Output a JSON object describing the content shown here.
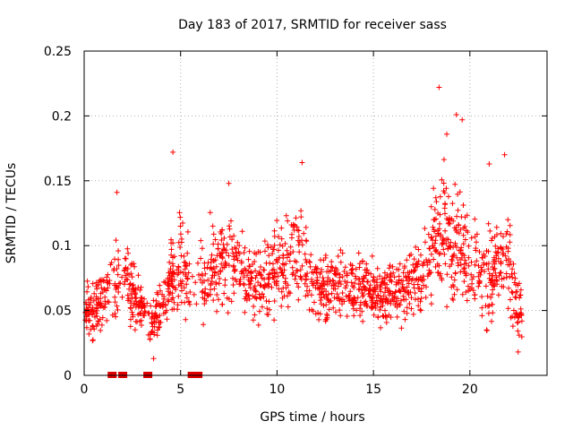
{
  "chart_data": {
    "type": "scatter",
    "title": "Day 183 of 2017, SRMTID for receiver sass",
    "xlabel": "GPS time / hours",
    "ylabel": "SRMTID / TECUs",
    "xlim": [
      0,
      24
    ],
    "ylim": [
      0,
      0.25
    ],
    "xticks": [
      0,
      5,
      10,
      15,
      20
    ],
    "xtick_labels": [
      "0",
      "5",
      "10",
      "15",
      "20"
    ],
    "yticks": [
      0,
      0.05,
      0.1,
      0.15,
      0.2,
      0.25
    ],
    "ytick_labels": [
      "0",
      "0.05",
      "0.1",
      "0.15",
      "0.2",
      "0.25"
    ],
    "grid": true,
    "marker": "plus",
    "point_color": "#ff0000",
    "gap_marker_color": "#dd0000",
    "gap_markers_x": [
      1.45,
      2.0,
      3.3,
      5.6,
      5.9
    ],
    "envelope": {
      "description": "typical SRMTID level (center) and scatter half-width per hour, read from chart",
      "hours": [
        0,
        0.5,
        1,
        1.5,
        2,
        2.5,
        3,
        3.5,
        4,
        4.5,
        5,
        5.5,
        6,
        6.5,
        7,
        7.5,
        8,
        8.5,
        9,
        9.5,
        10,
        10.5,
        11,
        11.5,
        12,
        12.5,
        13,
        13.5,
        14,
        14.5,
        15,
        15.5,
        16,
        16.5,
        17,
        17.5,
        18,
        18.5,
        19,
        19.5,
        20,
        20.5,
        21,
        21.5,
        22,
        22.5
      ],
      "center": [
        0.055,
        0.05,
        0.06,
        0.07,
        0.08,
        0.065,
        0.05,
        0.04,
        0.05,
        0.075,
        0.09,
        0.07,
        0.075,
        0.08,
        0.085,
        0.09,
        0.08,
        0.075,
        0.07,
        0.075,
        0.08,
        0.085,
        0.1,
        0.085,
        0.07,
        0.065,
        0.07,
        0.065,
        0.065,
        0.068,
        0.065,
        0.062,
        0.065,
        0.068,
        0.07,
        0.075,
        0.1,
        0.11,
        0.105,
        0.1,
        0.085,
        0.08,
        0.075,
        0.09,
        0.085,
        0.05
      ],
      "spread": [
        0.02,
        0.02,
        0.025,
        0.03,
        0.03,
        0.03,
        0.02,
        0.015,
        0.02,
        0.03,
        0.04,
        0.03,
        0.03,
        0.035,
        0.035,
        0.035,
        0.03,
        0.03,
        0.03,
        0.03,
        0.035,
        0.035,
        0.04,
        0.035,
        0.025,
        0.025,
        0.025,
        0.025,
        0.025,
        0.025,
        0.025,
        0.025,
        0.025,
        0.025,
        0.025,
        0.03,
        0.045,
        0.05,
        0.05,
        0.045,
        0.04,
        0.035,
        0.035,
        0.04,
        0.04,
        0.02
      ]
    },
    "peaks": [
      {
        "x": 1.7,
        "y": 0.141
      },
      {
        "x": 4.6,
        "y": 0.172
      },
      {
        "x": 7.5,
        "y": 0.148
      },
      {
        "x": 11.3,
        "y": 0.164
      },
      {
        "x": 18.4,
        "y": 0.222
      },
      {
        "x": 18.8,
        "y": 0.186
      },
      {
        "x": 19.3,
        "y": 0.201
      },
      {
        "x": 19.6,
        "y": 0.197
      },
      {
        "x": 21.0,
        "y": 0.163
      },
      {
        "x": 21.8,
        "y": 0.17
      },
      {
        "x": 3.6,
        "y": 0.013
      },
      {
        "x": 22.5,
        "y": 0.018
      }
    ]
  }
}
